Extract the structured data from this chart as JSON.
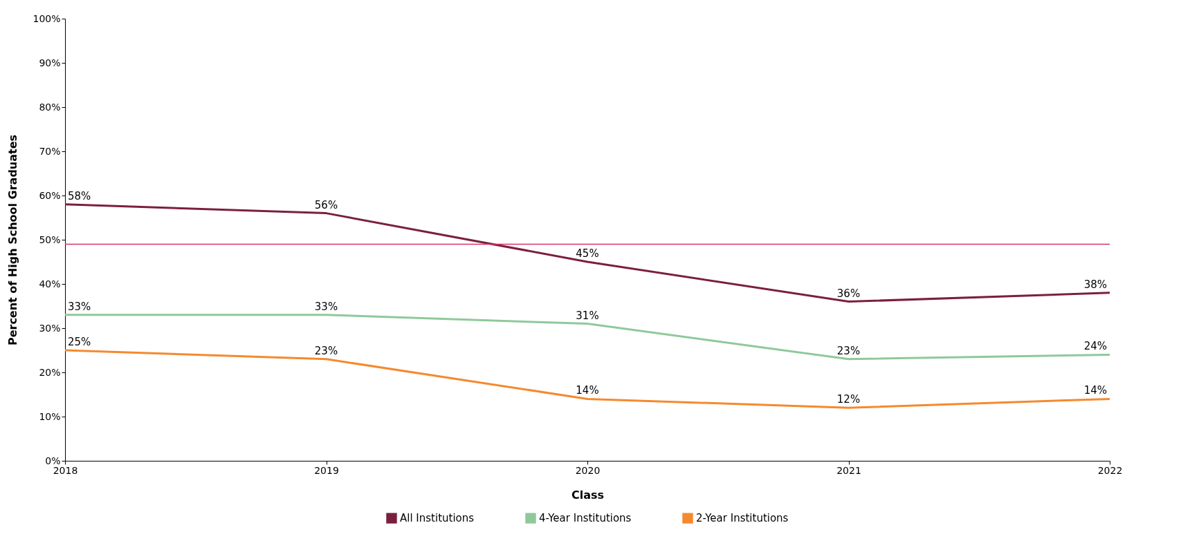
{
  "chart_data": {
    "type": "line",
    "xlabel": "Class",
    "ylabel": "Percent of High School Graduates",
    "categories": [
      "2018",
      "2019",
      "2020",
      "2021",
      "2022"
    ],
    "series": [
      {
        "name": "All Institutions",
        "color": "#7b1f3f",
        "values": [
          58,
          56,
          45,
          36,
          38
        ],
        "value_labels": [
          "58%",
          "56%",
          "45%",
          "36%",
          "38%"
        ]
      },
      {
        "name": "4-Year Institutions",
        "color": "#8fc99a",
        "values": [
          33,
          33,
          31,
          23,
          24
        ],
        "value_labels": [
          "33%",
          "33%",
          "31%",
          "23%",
          "24%"
        ]
      },
      {
        "name": "2-Year Institutions",
        "color": "#f5892e",
        "values": [
          25,
          23,
          14,
          12,
          14
        ],
        "value_labels": [
          "25%",
          "23%",
          "14%",
          "12%",
          "14%"
        ]
      }
    ],
    "ylim": [
      0,
      100
    ],
    "yticks": [
      {
        "value": 0,
        "label": "0%"
      },
      {
        "value": 10,
        "label": "10%"
      },
      {
        "value": 20,
        "label": "20%"
      },
      {
        "value": 30,
        "label": "30%"
      },
      {
        "value": 40,
        "label": "40%"
      },
      {
        "value": 50,
        "label": "50%"
      },
      {
        "value": 60,
        "label": "60%"
      },
      {
        "value": 70,
        "label": "70%"
      },
      {
        "value": 80,
        "label": "80%"
      },
      {
        "value": 90,
        "label": "90%"
      },
      {
        "value": 100,
        "label": "100%"
      }
    ],
    "ref_lines": [
      {
        "axis": "y",
        "value": 49,
        "label": null,
        "color": "#d6336c"
      }
    ],
    "legend": "bottom"
  }
}
